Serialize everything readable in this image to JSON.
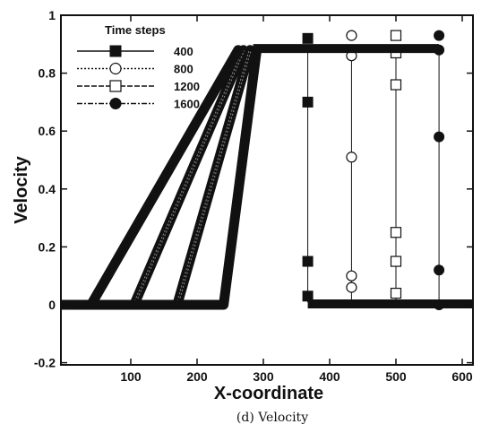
{
  "chart_data": {
    "type": "line",
    "title": "",
    "caption": "(d) Velocity",
    "xlabel": "X-coordinate",
    "ylabel": "Velocity",
    "xlim": [
      0,
      610
    ],
    "ylim": [
      -0.2,
      1.0
    ],
    "x_ticks": [
      100,
      200,
      300,
      400,
      500,
      600
    ],
    "y_ticks": [
      -0.2,
      0,
      0.2,
      0.4,
      0.6,
      0.8,
      1
    ],
    "y_tick_labels": [
      "-0.2",
      "0",
      "0.2",
      "0.4",
      "0.6",
      "0.8",
      "1"
    ],
    "grid": false,
    "legend": {
      "title": "Time steps",
      "position": "top-left"
    },
    "series": [
      {
        "name": "400",
        "marker": "filled-square",
        "ramp": {
          "x_start": 240,
          "x_end": 290
        },
        "line": [
          [
            0,
            0.0
          ],
          [
            240,
            0.0
          ],
          [
            290,
            0.88
          ],
          [
            367,
            0.88
          ],
          [
            367,
            0.01
          ],
          [
            610,
            0.01
          ]
        ],
        "markers": [
          [
            367,
            0.92
          ],
          [
            367,
            0.7
          ],
          [
            367,
            0.15
          ],
          [
            367,
            0.03
          ]
        ]
      },
      {
        "name": "800",
        "marker": "open-circle",
        "ramp": {
          "x_start": 170,
          "x_end": 280
        },
        "line": [
          [
            0,
            0.0
          ],
          [
            170,
            0.0
          ],
          [
            280,
            0.88
          ],
          [
            433,
            0.88
          ],
          [
            433,
            0.005
          ],
          [
            610,
            0.005
          ]
        ],
        "markers": [
          [
            433,
            0.93
          ],
          [
            433,
            0.86
          ],
          [
            433,
            0.51
          ],
          [
            433,
            0.1
          ],
          [
            433,
            0.06
          ]
        ]
      },
      {
        "name": "1200",
        "marker": "open-square",
        "ramp": {
          "x_start": 105,
          "x_end": 270
        },
        "line": [
          [
            0,
            0.0
          ],
          [
            105,
            0.0
          ],
          [
            270,
            0.88
          ],
          [
            500,
            0.88
          ],
          [
            500,
            0.005
          ],
          [
            610,
            0.005
          ]
        ],
        "markers": [
          [
            500,
            0.93
          ],
          [
            500,
            0.87
          ],
          [
            500,
            0.76
          ],
          [
            500,
            0.25
          ],
          [
            500,
            0.15
          ],
          [
            500,
            0.04
          ]
        ]
      },
      {
        "name": "1600",
        "marker": "filled-circle",
        "ramp": {
          "x_start": 40,
          "x_end": 262
        },
        "line": [
          [
            0,
            0.0
          ],
          [
            40,
            0.0
          ],
          [
            262,
            0.88
          ],
          [
            565,
            0.88
          ],
          [
            565,
            0.0
          ],
          [
            610,
            0.0
          ]
        ],
        "markers": [
          [
            565,
            0.93
          ],
          [
            565,
            0.88
          ],
          [
            565,
            0.58
          ],
          [
            565,
            0.12
          ],
          [
            565,
            0.0
          ]
        ]
      }
    ]
  }
}
